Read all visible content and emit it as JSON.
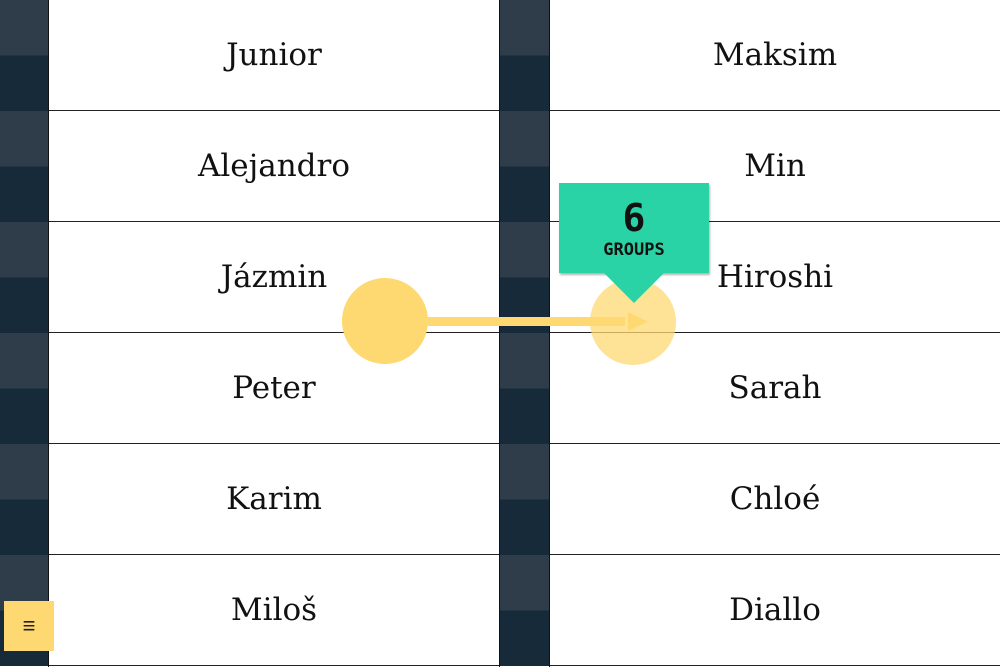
{
  "left_names": [
    "Junior",
    "Alejandro",
    "Jázmin",
    "Peter",
    "Karim",
    "Miloš"
  ],
  "right_names": [
    "Maksim",
    "Min",
    "Hiroshi",
    "Sarah",
    "Chloé",
    "Diallo"
  ],
  "tooltip": {
    "count": "6",
    "label": "GROUPS"
  },
  "menu": {
    "icon": "hamburger-menu-icon",
    "glyph": "≡"
  },
  "colors": {
    "accent": "#29d3a5",
    "drag": "#fed871",
    "strip": "#172a3a"
  }
}
